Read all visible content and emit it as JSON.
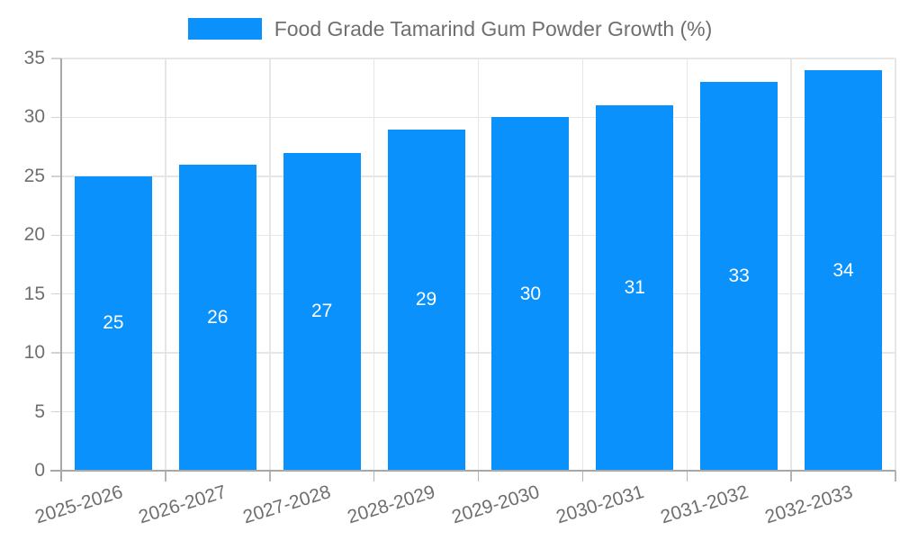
{
  "legend": {
    "label": "Food Grade Tamarind Gum Powder Growth (%)"
  },
  "chart_data": {
    "type": "bar",
    "title": "Food Grade Tamarind Gum Powder Growth (%)",
    "categories": [
      "2025-2026",
      "2026-2027",
      "2027-2028",
      "2028-2029",
      "2029-2030",
      "2030-2031",
      "2031-2032",
      "2032-2033"
    ],
    "values": [
      25,
      26,
      27,
      29,
      30,
      31,
      33,
      34
    ],
    "xlabel": "",
    "ylabel": "",
    "ylim": [
      0,
      35
    ],
    "ytick_step": 5,
    "yticks": [
      0,
      5,
      10,
      15,
      20,
      25,
      30,
      35
    ],
    "grid": true,
    "legend_position": "top",
    "bar_color": "#0a91fb",
    "value_label_color": "#ffffff",
    "axis_text_color": "#6f6f6f",
    "x_label_rotation_deg": -17
  }
}
